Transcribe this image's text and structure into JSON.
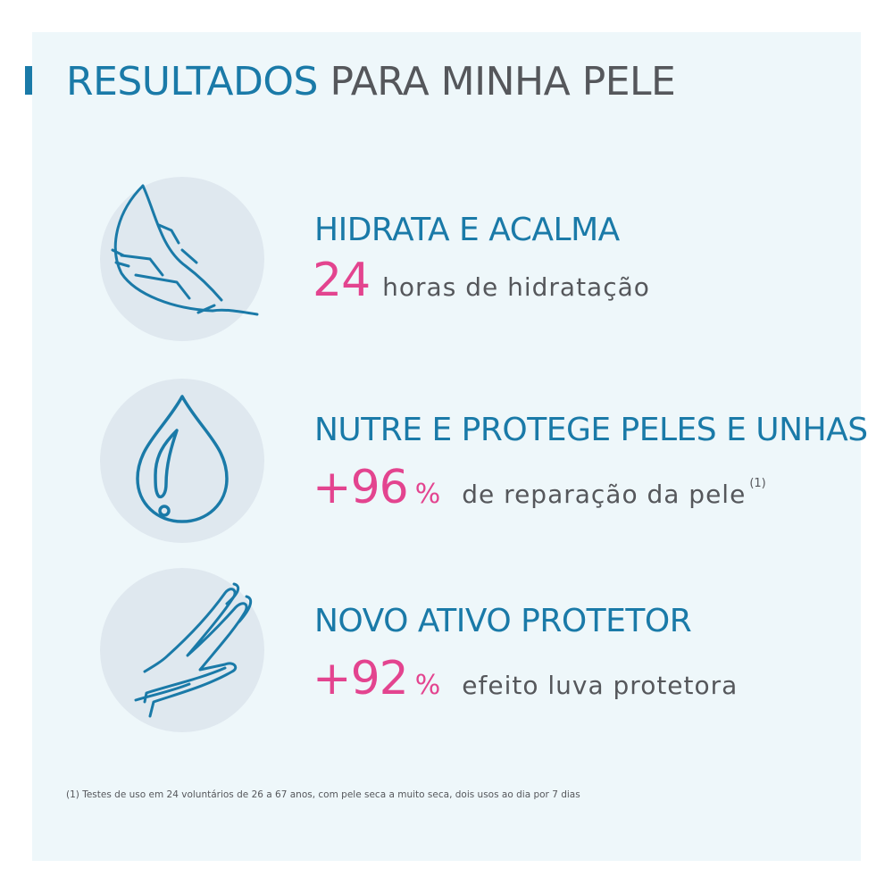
{
  "title": {
    "part1": "RESULTADOS",
    "part2": "PARA MINHA PELE"
  },
  "benefits": [
    {
      "icon": "feather-icon",
      "heading": "HIDRATA E ACALMA",
      "value": "24",
      "unit": "",
      "description": "horas de hidratação",
      "note": ""
    },
    {
      "icon": "water-drop-icon",
      "heading": "NUTRE E PROTEGE PELES E UNHAS",
      "value": "+96",
      "unit": "%",
      "description": "de reparação da pele",
      "note": "(1)"
    },
    {
      "icon": "hand-icon",
      "heading": "NOVO ATIVO PROTETOR",
      "value": "+92",
      "unit": "%",
      "description": "efeito luva protetora",
      "note": ""
    }
  ],
  "footnote": "(1) Testes de uso em 24 voluntários de 26 a 67 anos, com pele seca a muito seca, dois usos ao dia por 7 dias",
  "colors": {
    "accent_blue": "#1a7aa8",
    "accent_pink": "#e3448f",
    "text_gray": "#55575b",
    "panel_bg": "#eef7fa",
    "circle_bg": "#dfe8ef"
  }
}
